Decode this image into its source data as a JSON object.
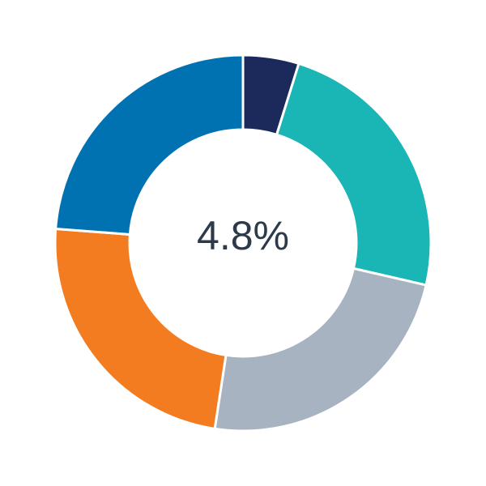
{
  "chart_data": {
    "type": "pie",
    "variant": "donut",
    "values": [
      4.8,
      23.8,
      23.8,
      23.8,
      23.8
    ],
    "colors": [
      "#1b2a5a",
      "#1ab5b5",
      "#a8b3c2",
      "#f47c20",
      "#0072b2"
    ],
    "start": "top",
    "direction": "clockwise",
    "center_label": "4.8%"
  }
}
